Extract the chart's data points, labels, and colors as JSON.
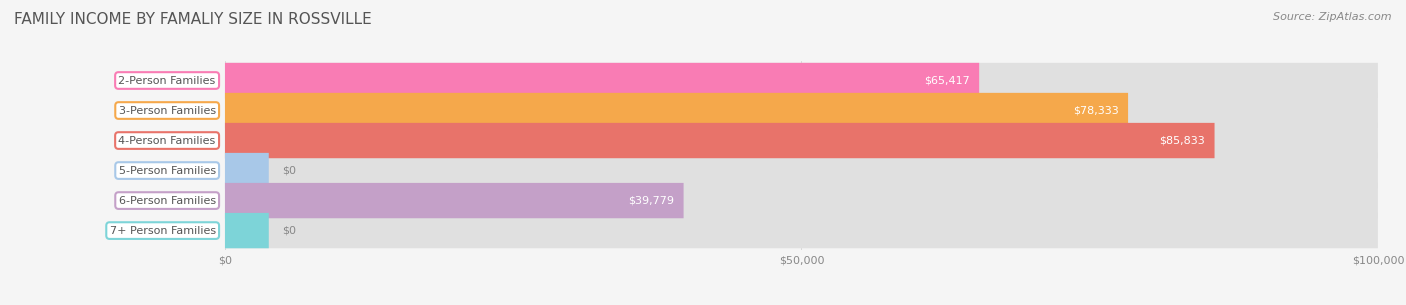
{
  "title": "FAMILY INCOME BY FAMALIY SIZE IN ROSSVILLE",
  "source": "Source: ZipAtlas.com",
  "categories": [
    "2-Person Families",
    "3-Person Families",
    "4-Person Families",
    "5-Person Families",
    "6-Person Families",
    "7+ Person Families"
  ],
  "values": [
    65417,
    78333,
    85833,
    0,
    39779,
    0
  ],
  "bar_colors": [
    "#F97CB4",
    "#F5A84B",
    "#E8736A",
    "#A8C8E8",
    "#C4A0C8",
    "#7DD4D8"
  ],
  "value_labels": [
    "$65,417",
    "$78,333",
    "$85,833",
    "$0",
    "$39,779",
    "$0"
  ],
  "xlim": [
    0,
    100000
  ],
  "xticks": [
    0,
    50000,
    100000
  ],
  "xtick_labels": [
    "$0",
    "$50,000",
    "$100,000"
  ],
  "background_color": "#f5f5f5",
  "bar_bg_color": "#e0e0e0",
  "title_fontsize": 11,
  "source_fontsize": 8,
  "label_fontsize": 8,
  "value_fontsize": 8,
  "bar_height": 0.62,
  "figsize": [
    14.06,
    3.05
  ],
  "dpi": 100
}
